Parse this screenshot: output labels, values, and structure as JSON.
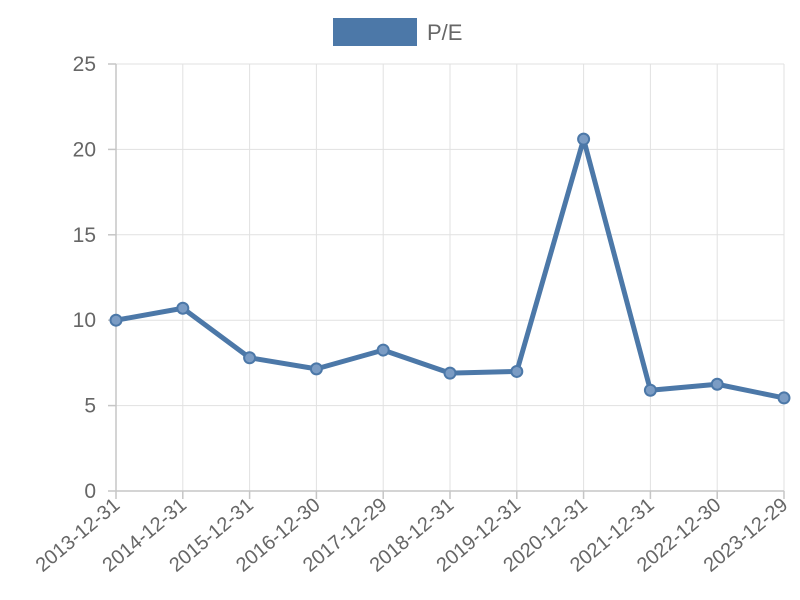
{
  "chart_data": {
    "type": "line",
    "title": "",
    "xlabel": "",
    "ylabel": "",
    "categories": [
      "2013-12-31",
      "2014-12-31",
      "2015-12-31",
      "2016-12-30",
      "2017-12-29",
      "2018-12-31",
      "2019-12-31",
      "2020-12-31",
      "2021-12-31",
      "2022-12-30",
      "2023-12-29"
    ],
    "series": [
      {
        "name": "P/E",
        "values": [
          10.0,
          10.7,
          7.8,
          7.15,
          8.25,
          6.9,
          7.0,
          20.6,
          5.9,
          6.25,
          5.45
        ]
      }
    ],
    "ylim": [
      0,
      25
    ],
    "yticks": [
      0,
      5,
      10,
      15,
      20,
      25
    ],
    "grid": true,
    "legend_position": "top-center",
    "colors": {
      "series": "#4c78a8",
      "point_fill": "#7b9cc4",
      "grid": "#e1e1e1",
      "axis": "#c6c6c6",
      "text": "#666666"
    }
  }
}
